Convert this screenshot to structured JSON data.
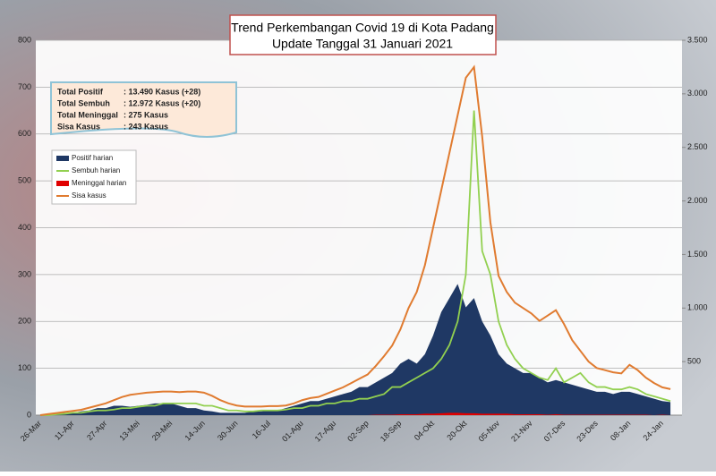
{
  "chart_data": {
    "type": "combo",
    "title": "Trend Perkembangan Covid 19 di Kota Padang",
    "subtitle": "Update Tanggal 31 Januari 2021",
    "info_box": [
      [
        "Total Positif",
        ": 13.490 Kasus (+28)"
      ],
      [
        "Total Sembuh",
        ": 12.972 Kasus (+20)"
      ],
      [
        "Total Meninggal",
        ":     275 Kasus"
      ],
      [
        "Sisa Kasus",
        ":     243 Kasus"
      ]
    ],
    "categories": [
      "26-Mar",
      null,
      null,
      null,
      "11-Apr",
      null,
      null,
      null,
      "27-Apr",
      null,
      null,
      null,
      "13-Mei",
      null,
      null,
      null,
      "29-Mei",
      null,
      null,
      null,
      "14-Jun",
      null,
      null,
      null,
      "30-Jun",
      null,
      null,
      null,
      "16-Jul",
      null,
      null,
      null,
      "01-Agu",
      null,
      null,
      null,
      "17-Agu",
      null,
      null,
      null,
      "02-Sep",
      null,
      null,
      null,
      "18-Sep",
      null,
      null,
      null,
      "04-Okt",
      null,
      null,
      null,
      "20-Okt",
      null,
      null,
      null,
      "05-Nov",
      null,
      null,
      null,
      "21-Nov",
      null,
      null,
      null,
      "07-Des",
      null,
      null,
      null,
      "23-Des",
      null,
      null,
      null,
      "08-Jan",
      null,
      null,
      null,
      "24-Jan",
      null
    ],
    "series": [
      {
        "name": "Positif harian",
        "kind": "area",
        "color": "#1f3864",
        "values": [
          0,
          2,
          3,
          5,
          5,
          8,
          10,
          15,
          15,
          20,
          20,
          18,
          20,
          22,
          25,
          25,
          25,
          20,
          15,
          15,
          10,
          8,
          5,
          5,
          5,
          5,
          8,
          8,
          10,
          10,
          15,
          20,
          25,
          30,
          30,
          35,
          40,
          45,
          50,
          60,
          60,
          70,
          80,
          90,
          110,
          120,
          110,
          130,
          170,
          220,
          250,
          280,
          230,
          250,
          200,
          170,
          130,
          110,
          100,
          90,
          90,
          80,
          70,
          75,
          70,
          65,
          60,
          55,
          50,
          50,
          45,
          50,
          50,
          45,
          40,
          35,
          30,
          28
        ]
      },
      {
        "name": "Sembuh harian",
        "kind": "line",
        "color": "#92d050",
        "values": [
          0,
          0,
          2,
          3,
          5,
          5,
          8,
          10,
          10,
          12,
          15,
          15,
          18,
          20,
          20,
          25,
          25,
          25,
          25,
          25,
          20,
          20,
          15,
          10,
          10,
          8,
          8,
          10,
          10,
          10,
          12,
          15,
          15,
          20,
          20,
          25,
          25,
          30,
          30,
          35,
          35,
          40,
          45,
          60,
          60,
          70,
          80,
          90,
          100,
          120,
          150,
          200,
          300,
          650,
          350,
          300,
          200,
          150,
          120,
          100,
          90,
          80,
          75,
          100,
          70,
          80,
          90,
          70,
          60,
          60,
          55,
          55,
          60,
          55,
          45,
          40,
          35,
          30
        ]
      },
      {
        "name": "Meninggal harian",
        "kind": "area",
        "color": "#e00000",
        "values": [
          0,
          0,
          0,
          0,
          0,
          0,
          0,
          0,
          0,
          0,
          0,
          0,
          0,
          0,
          0,
          0,
          0,
          0,
          0,
          0,
          0,
          0,
          0,
          0,
          0,
          0,
          0,
          0,
          0,
          0,
          0,
          0,
          0,
          0,
          0,
          0,
          0,
          0,
          0,
          0,
          0,
          1,
          1,
          1,
          2,
          2,
          2,
          3,
          3,
          4,
          5,
          5,
          4,
          4,
          3,
          3,
          3,
          3,
          2,
          2,
          2,
          2,
          1,
          2,
          1,
          1,
          1,
          1,
          1,
          1,
          1,
          1,
          1,
          1,
          1,
          0,
          1,
          0
        ]
      },
      {
        "name": "Sisa kasus",
        "kind": "line",
        "axis": "y2",
        "color": "#e07b30",
        "values": [
          0,
          10,
          20,
          30,
          40,
          50,
          70,
          90,
          110,
          140,
          170,
          190,
          200,
          210,
          215,
          220,
          220,
          215,
          220,
          220,
          210,
          180,
          140,
          110,
          90,
          80,
          80,
          80,
          85,
          85,
          90,
          110,
          140,
          160,
          170,
          200,
          230,
          260,
          300,
          340,
          380,
          460,
          550,
          650,
          800,
          1000,
          1150,
          1400,
          1750,
          2100,
          2450,
          2800,
          3150,
          3250,
          2600,
          1800,
          1300,
          1150,
          1050,
          1000,
          950,
          880,
          930,
          980,
          850,
          700,
          600,
          500,
          440,
          420,
          400,
          390,
          470,
          420,
          350,
          300,
          260,
          243
        ]
      }
    ],
    "ylim": [
      0,
      800
    ],
    "yticks": [
      0,
      100,
      200,
      300,
      400,
      500,
      600,
      700,
      800
    ],
    "y2lim": [
      0,
      3500
    ],
    "y2ticks": [
      500,
      {
        "value": 1000,
        "label": "1.000"
      },
      {
        "value": 1500,
        "label": "1.500"
      },
      {
        "value": 2000,
        "label": "2.000"
      },
      {
        "value": 2500,
        "label": "2.500"
      },
      {
        "value": 3000,
        "label": "3.000"
      },
      {
        "value": 3500,
        "label": "3.500"
      }
    ],
    "grid": true
  }
}
